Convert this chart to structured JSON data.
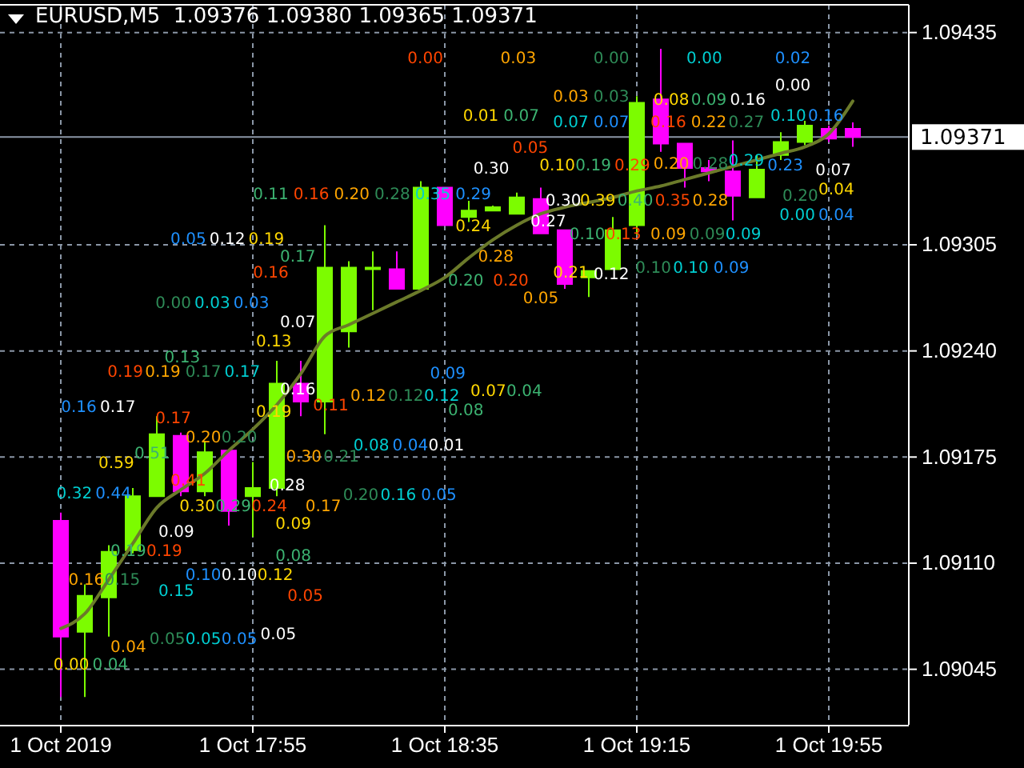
{
  "chart_data": {
    "type": "candlestick",
    "title": "EURUSD,M5  1.09376 1.09380 1.09365 1.09371",
    "categories": [
      "1 Oct 2019",
      null,
      null,
      null,
      null,
      null,
      null,
      null,
      "1 Oct 17:55",
      null,
      null,
      null,
      null,
      null,
      null,
      null,
      "1 Oct 18:35",
      null,
      null,
      null,
      null,
      null,
      null,
      null,
      "1 Oct 19:15",
      null,
      null,
      null,
      null,
      null,
      null,
      null,
      "1 Oct 19:55",
      null
    ],
    "ohlc": [
      [
        1.09136,
        1.09141,
        1.09028,
        1.09065
      ],
      [
        1.09068,
        1.09097,
        1.09028,
        1.0909
      ],
      [
        1.09089,
        1.09121,
        1.09065,
        1.09117
      ],
      [
        1.09118,
        1.09156,
        1.09116,
        1.09151
      ],
      [
        1.09151,
        1.092,
        1.09151,
        1.09189
      ],
      [
        1.09188,
        1.0919,
        1.09151,
        1.09154
      ],
      [
        1.09154,
        1.09185,
        1.09151,
        1.09178
      ],
      [
        1.09179,
        1.09179,
        1.09133,
        1.09142
      ],
      [
        1.09151,
        1.09172,
        1.09126,
        1.09156
      ],
      [
        1.09156,
        1.09234,
        1.09151,
        1.0922
      ],
      [
        1.0922,
        1.09234,
        1.092,
        1.09209
      ],
      [
        1.09209,
        1.09317,
        1.09189,
        1.09291
      ],
      [
        1.09252,
        1.09295,
        1.09242,
        1.09291
      ],
      [
        1.09291,
        1.09301,
        1.09265,
        1.09291
      ],
      [
        1.0929,
        1.09301,
        1.09278,
        1.09278
      ],
      [
        1.09278,
        1.09344,
        1.09278,
        1.0934
      ],
      [
        1.0934,
        1.0934,
        1.09317,
        1.09317
      ],
      [
        1.09322,
        1.09332,
        1.09319,
        1.09326
      ],
      [
        1.09326,
        1.09329,
        1.09326,
        1.09328
      ],
      [
        1.09324,
        1.09337,
        1.09324,
        1.09334
      ],
      [
        1.09333,
        1.0934,
        1.09312,
        1.09312
      ],
      [
        1.09314,
        1.09314,
        1.09278,
        1.09281
      ],
      [
        1.09285,
        1.09289,
        1.09273,
        1.09289
      ],
      [
        1.0929,
        1.09322,
        1.0929,
        1.09314
      ],
      [
        1.09317,
        1.09396,
        1.09311,
        1.09392
      ],
      [
        1.09394,
        1.09425,
        1.09362,
        1.09367
      ],
      [
        1.09367,
        1.09367,
        1.0934,
        1.09352
      ],
      [
        1.09352,
        1.09357,
        1.09344,
        1.0935
      ],
      [
        1.0935,
        1.09369,
        1.0932,
        1.09335
      ],
      [
        1.09334,
        1.0936,
        1.09334,
        1.09351
      ],
      [
        1.0936,
        1.09374,
        1.09357,
        1.09368
      ],
      [
        1.09368,
        1.09381,
        1.09366,
        1.09378
      ],
      [
        1.09376,
        1.09378,
        1.09368,
        1.0937
      ],
      [
        1.09376,
        1.0938,
        1.09365,
        1.09371
      ]
    ],
    "series": [
      {
        "type": "line",
        "color": "#6b7a2a",
        "values": [
          1.0907,
          1.09079,
          1.091,
          1.09122,
          1.09144,
          1.09155,
          1.09165,
          1.09179,
          1.09192,
          1.09207,
          1.09226,
          1.09249,
          1.09256,
          1.09263,
          1.0927,
          1.09277,
          1.09285,
          1.09297,
          1.09308,
          1.09317,
          1.09324,
          1.09328,
          1.09331,
          1.09334,
          1.09338,
          1.09341,
          1.09345,
          1.09349,
          1.09353,
          1.09357,
          1.09361,
          1.09365,
          1.09373,
          1.09393
        ]
      }
    ],
    "ylim": [
      1.09011,
      1.09452
    ],
    "yticks": [
      {
        "value": 1.09045,
        "label": "1.09045"
      },
      {
        "value": 1.0911,
        "label": "1.09110"
      },
      {
        "value": 1.09175,
        "label": "1.09175"
      },
      {
        "value": 1.0924,
        "label": "1.09240"
      },
      {
        "value": 1.09305,
        "label": "1.09305"
      },
      {
        "value": 1.09435,
        "label": "1.09435"
      }
    ],
    "grid": true,
    "ref_lines": [
      {
        "axis": "y",
        "value": 1.09371,
        "label": "1.09371",
        "color": "#8a96a6"
      }
    ],
    "annotations": [
      "0.00",
      "0.03",
      "0.00",
      "0.00",
      "0.02",
      "0.00",
      "0.01",
      "0.07",
      "0.05",
      "0.03",
      "0.03",
      "0.07",
      "0.07",
      "0.16",
      "0.08",
      "0.09",
      "0.16",
      "0.22",
      "0.27",
      "0.10",
      "0.16",
      "0.30",
      "0.10",
      "0.19",
      "0.29",
      "0.20",
      "0.28",
      "0.29",
      "0.23",
      "0.07",
      "0.04",
      "0.11",
      "0.16",
      "0.20",
      "0.28",
      "0.35",
      "0.29",
      "0.30",
      "0.39",
      "0.40",
      "0.35",
      "0.28",
      "0.20",
      "0.00",
      "0.04",
      "0.27",
      "0.24",
      "0.10",
      "0.13",
      "0.09",
      "0.09",
      "0.09",
      "0.05",
      "0.12",
      "0.19",
      "0.17",
      "0.16",
      "0.28",
      "0.10",
      "0.10",
      "0.09",
      "0.12",
      "0.21",
      "0.20",
      "0.20",
      "0.05",
      "0.00",
      "0.03",
      "0.03",
      "0.07",
      "0.13",
      "0.13",
      "0.19",
      "0.19",
      "0.17",
      "0.17",
      "0.09",
      "0.16",
      "0.07",
      "0.04",
      "0.11",
      "0.12",
      "0.12",
      "0.12",
      "0.16",
      "0.17",
      "0.19",
      "0.08",
      "0.17",
      "0.20",
      "0.20",
      "0.08",
      "0.04",
      "0.01",
      "0.59",
      "0.51",
      "0.41",
      "0.30",
      "0.21",
      "0.32",
      "0.44",
      "0.28",
      "0.30",
      "0.29",
      "0.24",
      "0.17",
      "0.20",
      "0.16",
      "0.05",
      "0.09",
      "0.09",
      "0.19",
      "0.19",
      "0.16",
      "0.15",
      "0.15",
      "0.10",
      "0.10",
      "0.12",
      "0.08",
      "0.05",
      "0.04",
      "0.05",
      "0.05",
      "0.05",
      "0.05",
      "0.00",
      "0.04"
    ]
  }
}
